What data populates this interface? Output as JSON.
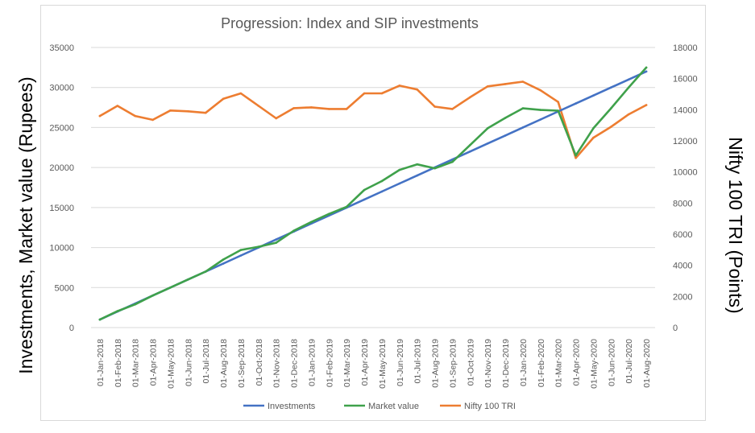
{
  "chart_data": {
    "type": "line",
    "title": "Progression: Index and SIP investments",
    "ylabel": "Investments, Market value (Rupees)",
    "y2label": "Nifty 100 TRI (Points)",
    "ylim": [
      0,
      35000
    ],
    "y2lim": [
      0,
      18000
    ],
    "yticks": [
      0,
      5000,
      10000,
      15000,
      20000,
      25000,
      30000,
      35000
    ],
    "y2ticks": [
      0,
      2000,
      4000,
      6000,
      8000,
      10000,
      12000,
      14000,
      16000,
      18000
    ],
    "grid": true,
    "legend_position": "bottom",
    "categories": [
      "01-Jan-2018",
      "01-Feb-2018",
      "01-Mar-2018",
      "01-Apr-2018",
      "01-May-2018",
      "01-Jun-2018",
      "01-Jul-2018",
      "01-Aug-2018",
      "01-Sep-2018",
      "01-Oct-2018",
      "01-Nov-2018",
      "01-Dec-2018",
      "01-Jan-2019",
      "01-Feb-2019",
      "01-Mar-2019",
      "01-Apr-2019",
      "01-May-2019",
      "01-Jun-2019",
      "01-Jul-2019",
      "01-Aug-2019",
      "01-Sep-2019",
      "01-Oct-2019",
      "01-Nov-2019",
      "01-Dec-2019",
      "01-Jan-2020",
      "01-Feb-2020",
      "01-Mar-2020",
      "01-Apr-2020",
      "01-May-2020",
      "01-Jun-2020",
      "01-Jul-2020",
      "01-Aug-2020"
    ],
    "series": [
      {
        "name": "Investments",
        "axis": "left",
        "color": "#4472c4",
        "values": [
          1000,
          2000,
          3000,
          4000,
          5000,
          6000,
          7000,
          8000,
          9000,
          10000,
          11000,
          12000,
          13000,
          14000,
          15000,
          16000,
          17000,
          18000,
          19000,
          20000,
          21000,
          22000,
          23000,
          24000,
          25000,
          26000,
          27000,
          28000,
          29000,
          30000,
          31000,
          32000
        ]
      },
      {
        "name": "Market value",
        "axis": "left",
        "color": "#3fa14b",
        "values": [
          1000,
          2050,
          2900,
          4000,
          5000,
          6000,
          7000,
          8500,
          9700,
          10100,
          10600,
          12100,
          13200,
          14200,
          15100,
          17200,
          18300,
          19700,
          20400,
          19900,
          20700,
          22800,
          24900,
          26200,
          27400,
          27200,
          27100,
          21500,
          24900,
          27400,
          30000,
          32500
        ]
      },
      {
        "name": "Nifty 100 TRI",
        "axis": "right",
        "color": "#ed7d31",
        "values": [
          13600,
          14250,
          13600,
          13350,
          13950,
          13900,
          13800,
          14700,
          15050,
          14250,
          13450,
          14100,
          14150,
          14050,
          14050,
          15050,
          15050,
          15550,
          15300,
          14200,
          14050,
          14800,
          15500,
          15650,
          15800,
          15250,
          14500,
          10900,
          12200,
          12900,
          13700,
          14300
        ]
      }
    ]
  }
}
